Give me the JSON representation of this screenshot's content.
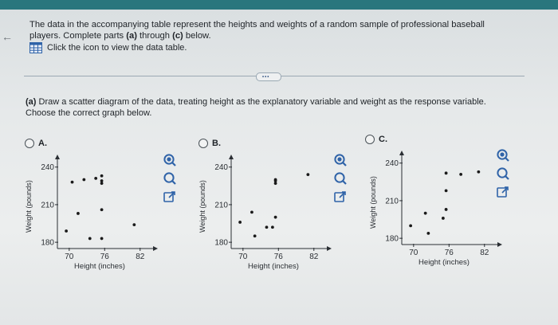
{
  "question": {
    "intro_line1": "The data in the accompanying table represent the heights and weights of a random sample of professional baseball",
    "intro_line2_prefix": "players. Complete parts ",
    "intro_a": "(a)",
    "intro_mid": " through ",
    "intro_c": "(c)",
    "intro_suffix": " below.",
    "table_link": "Click the icon to view the data table.",
    "more_button": "•••",
    "part_a_label": "(a)",
    "part_a_line1": " Draw a scatter diagram of the data, treating height as the explanatory variable and weight as the response variable.",
    "part_a_line2": "Choose the correct graph below."
  },
  "options": [
    {
      "letter": "A."
    },
    {
      "letter": "B."
    },
    {
      "letter": "C."
    }
  ],
  "icons": {
    "zoom_in": "zoom-in-icon",
    "zoom_out": "zoom-out-icon",
    "expand": "external-link-icon",
    "data_table": "table-icon",
    "back": "left-arrow-icon"
  },
  "colors": {
    "header": "#29767d",
    "icon_blue": "#2f63a8",
    "dot": "#1a1a1a"
  },
  "chart_data": [
    {
      "type": "scatter",
      "option": "A",
      "xlabel": "Height (inches)",
      "ylabel": "Weight (pounds)",
      "xlim": [
        68,
        85
      ],
      "ylim": [
        175,
        250
      ],
      "xticks": [
        70,
        76,
        82
      ],
      "yticks": [
        180,
        210,
        240
      ],
      "points": [
        [
          69.5,
          189
        ],
        [
          71.5,
          203
        ],
        [
          73.5,
          183
        ],
        [
          75.5,
          183
        ],
        [
          75.5,
          206
        ],
        [
          70.5,
          228
        ],
        [
          72.5,
          230
        ],
        [
          74.5,
          231
        ],
        [
          75.5,
          233
        ],
        [
          75.5,
          229
        ],
        [
          75.5,
          227
        ],
        [
          81,
          194
        ]
      ]
    },
    {
      "type": "scatter",
      "option": "B",
      "xlabel": "Height (inches)",
      "ylabel": "Weight (pounds)",
      "xlim": [
        68,
        85
      ],
      "ylim": [
        175,
        250
      ],
      "xticks": [
        70,
        76,
        82
      ],
      "yticks": [
        180,
        210,
        240
      ],
      "points": [
        [
          69.5,
          196
        ],
        [
          71.5,
          204
        ],
        [
          72,
          185
        ],
        [
          74,
          192
        ],
        [
          75,
          192
        ],
        [
          75.5,
          200
        ],
        [
          75.5,
          227
        ],
        [
          75.5,
          229
        ],
        [
          75.5,
          230
        ],
        [
          81,
          234
        ]
      ]
    },
    {
      "type": "scatter",
      "option": "C",
      "xlabel": "Height (inches)",
      "ylabel": "Weight (pounds)",
      "xlim": [
        68,
        85
      ],
      "ylim": [
        175,
        250
      ],
      "xticks": [
        70,
        76,
        82
      ],
      "yticks": [
        180,
        210,
        240
      ],
      "points": [
        [
          69.5,
          190
        ],
        [
          72,
          200
        ],
        [
          72.5,
          184
        ],
        [
          75,
          196
        ],
        [
          75.5,
          218
        ],
        [
          75.5,
          203
        ],
        [
          75.5,
          232
        ],
        [
          78,
          231
        ],
        [
          81,
          233
        ]
      ]
    }
  ]
}
